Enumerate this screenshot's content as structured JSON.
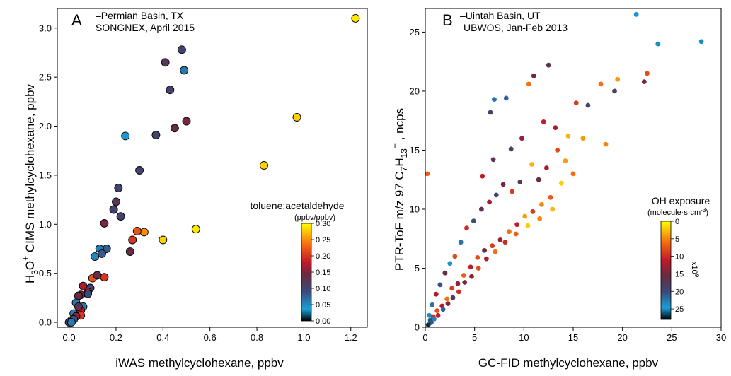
{
  "chart_data": [
    {
      "type": "scatter",
      "panel": "A",
      "title": "Permian Basin, TX",
      "subtitle": "SONGNEX, April 2015",
      "xlabel": "iWAS methylcyclohexane, ppbv",
      "ylabel_parts": [
        "H",
        "3",
        "O",
        "+",
        " CIMS methylcyclohexane, ppbv"
      ],
      "xlim": [
        -0.05,
        1.27
      ],
      "ylim": [
        -0.05,
        3.2
      ],
      "xticks": [
        0.0,
        0.2,
        0.4,
        0.6,
        0.8,
        1.0,
        1.2
      ],
      "xtick_labels": [
        "0.0",
        "0.2",
        "0.4",
        "0.6",
        "0.8",
        "1.0",
        "1.2"
      ],
      "yticks": [
        0.0,
        0.5,
        1.0,
        1.5,
        2.0,
        2.5,
        3.0
      ],
      "ytick_labels": [
        "0.0",
        "0.5",
        "1.0",
        "1.5",
        "2.0",
        "2.5",
        "3.0"
      ],
      "colorbar": {
        "title": "toluene:acetaldehyde",
        "unit": "(ppbv/ppbv)",
        "range": [
          0.0,
          0.3
        ],
        "ticks": [
          0.0,
          0.05,
          0.1,
          0.15,
          0.2,
          0.25,
          0.3
        ],
        "tick_labels": [
          "0.00",
          "0.05",
          "0.10",
          "0.15",
          "0.20",
          "0.25",
          "0.30"
        ]
      },
      "x": [
        1.22,
        0.97,
        0.83,
        0.54,
        0.4,
        0.32,
        0.48,
        0.41,
        0.43,
        0.45,
        0.5,
        0.37,
        0.49,
        0.24,
        0.3,
        0.21,
        0.2,
        0.19,
        0.22,
        0.29,
        0.27,
        0.26,
        0.15,
        0.16,
        0.13,
        0.14,
        0.15,
        0.11,
        0.1,
        0.09,
        0.12,
        0.08,
        0.06,
        0.08,
        0.05,
        0.04,
        0.06,
        0.05,
        0.03,
        0.04,
        0.05,
        0.02,
        0.03,
        0.01,
        0.02,
        0.0,
        0.01
      ],
      "y": [
        3.1,
        2.09,
        1.6,
        0.95,
        0.84,
        0.92,
        2.78,
        2.65,
        2.37,
        1.98,
        2.05,
        1.91,
        2.57,
        1.9,
        1.55,
        1.37,
        1.23,
        1.15,
        1.08,
        0.93,
        0.84,
        0.72,
        1.01,
        0.75,
        0.75,
        0.7,
        0.46,
        0.67,
        0.45,
        0.35,
        0.48,
        0.31,
        0.37,
        0.29,
        0.28,
        0.27,
        0.16,
        0.12,
        0.2,
        0.16,
        0.07,
        0.09,
        0.06,
        0.02,
        0.03,
        0.0,
        0.0
      ],
      "color_value": [
        0.29,
        0.28,
        0.28,
        0.29,
        0.28,
        0.25,
        0.1,
        0.12,
        0.1,
        0.14,
        0.15,
        0.1,
        0.06,
        0.04,
        0.1,
        0.1,
        0.12,
        0.1,
        0.1,
        0.22,
        0.2,
        0.14,
        0.15,
        0.08,
        0.06,
        0.08,
        0.2,
        0.05,
        0.22,
        0.1,
        0.14,
        0.16,
        0.17,
        0.09,
        0.15,
        0.14,
        0.06,
        0.18,
        0.06,
        0.13,
        0.2,
        0.06,
        0.16,
        0.05,
        0.08,
        0.1,
        0.06
      ]
    },
    {
      "type": "scatter",
      "panel": "B",
      "title": "Uintah Basin, UT",
      "subtitle": "UBWOS, Jan-Feb 2013",
      "xlabel": "GC-FID methylcyclohexane, ppbv",
      "ylabel_parts": [
        "PTR-ToF m/z 97 C",
        "7",
        "H",
        "13",
        "+",
        " , ncps"
      ],
      "xlim": [
        0,
        30
      ],
      "ylim": [
        0,
        27
      ],
      "xticks": [
        0,
        5,
        10,
        15,
        20,
        25,
        30
      ],
      "xtick_labels": [
        "0",
        "5",
        "10",
        "15",
        "20",
        "25",
        "30"
      ],
      "yticks": [
        0,
        5,
        10,
        15,
        20,
        25
      ],
      "ytick_labels": [
        "0",
        "5",
        "10",
        "15",
        "20",
        "25"
      ],
      "colorbar": {
        "title": "OH exposure",
        "unit_parts": [
          "(molecule·s·cm",
          "-3",
          ")"
        ],
        "multiplier_parts": [
          "x10",
          "9"
        ],
        "range": [
          0,
          28
        ],
        "ticks": [
          0,
          5,
          10,
          15,
          20,
          25
        ],
        "tick_labels": [
          "0",
          "5",
          "10",
          "15",
          "20",
          "25"
        ],
        "reversed": true
      },
      "x": [
        21.4,
        23.6,
        28.0,
        22.2,
        22.5,
        17.8,
        19.2,
        19.5,
        18.3,
        16.5,
        15.3,
        12.5,
        11.0,
        10.5,
        8.2,
        7.0,
        6.6,
        13.2,
        14.5,
        12.0,
        9.8,
        8.7,
        6.9,
        5.8,
        0.2,
        14.2,
        13.4,
        12.3,
        11.5,
        10.8,
        9.6,
        8.8,
        7.9,
        7.2,
        6.5,
        5.7,
        4.9,
        4.2,
        3.6,
        3.0,
        2.5,
        2.0,
        1.5,
        1.1,
        0.7,
        0.4,
        16.0,
        15.0,
        13.8,
        12.7,
        11.8,
        10.9,
        10.1,
        9.3,
        8.5,
        7.6,
        6.8,
        6.0,
        5.3,
        4.6,
        3.9,
        3.3,
        2.7,
        2.2,
        1.7,
        1.2,
        0.8,
        0.5,
        12.9,
        11.6,
        10.4,
        9.2,
        8.1,
        7.1,
        6.2,
        5.4,
        4.7,
        4.0,
        3.4,
        2.8,
        2.3,
        1.8,
        1.3,
        0.9,
        0.6,
        0.3
      ],
      "y": [
        26.5,
        24.0,
        24.2,
        20.8,
        21.5,
        20.6,
        20.0,
        21.0,
        15.5,
        18.8,
        19.0,
        22.2,
        21.3,
        20.6,
        19.4,
        19.3,
        18.2,
        16.9,
        16.2,
        17.4,
        16.0,
        15.1,
        14.2,
        12.8,
        13.0,
        14.1,
        15.0,
        13.5,
        12.5,
        13.8,
        12.3,
        11.5,
        12.1,
        11.2,
        10.6,
        10.0,
        9.0,
        8.4,
        7.2,
        6.0,
        5.4,
        4.6,
        3.6,
        2.8,
        1.9,
        1.0,
        16.0,
        13.0,
        12.2,
        11.0,
        10.4,
        9.8,
        9.4,
        8.7,
        8.1,
        7.4,
        6.9,
        6.5,
        5.9,
        5.1,
        4.4,
        3.7,
        3.3,
        2.4,
        1.8,
        1.4,
        0.9,
        0.6,
        10.0,
        9.2,
        8.6,
        7.9,
        7.2,
        6.4,
        5.8,
        5.0,
        4.3,
        3.8,
        3.0,
        2.5,
        2.0,
        1.5,
        1.0,
        0.7,
        0.4,
        0.2
      ],
      "color_value": [
        24,
        25,
        25,
        14,
        8,
        6,
        18,
        4,
        5,
        19,
        9,
        16,
        14,
        6,
        21,
        22,
        18,
        12,
        3,
        11,
        13,
        18,
        16,
        11,
        7,
        4,
        8,
        12,
        15,
        3,
        17,
        9,
        14,
        19,
        12,
        16,
        20,
        10,
        22,
        8,
        24,
        15,
        20,
        12,
        22,
        25,
        4,
        6,
        2,
        7,
        5,
        9,
        4,
        11,
        6,
        13,
        9,
        15,
        8,
        11,
        7,
        13,
        9,
        6,
        12,
        8,
        10,
        26,
        3,
        5,
        2,
        7,
        10,
        6,
        12,
        8,
        13,
        14,
        10,
        17,
        13,
        21,
        11,
        23,
        20,
        27
      ]
    }
  ]
}
